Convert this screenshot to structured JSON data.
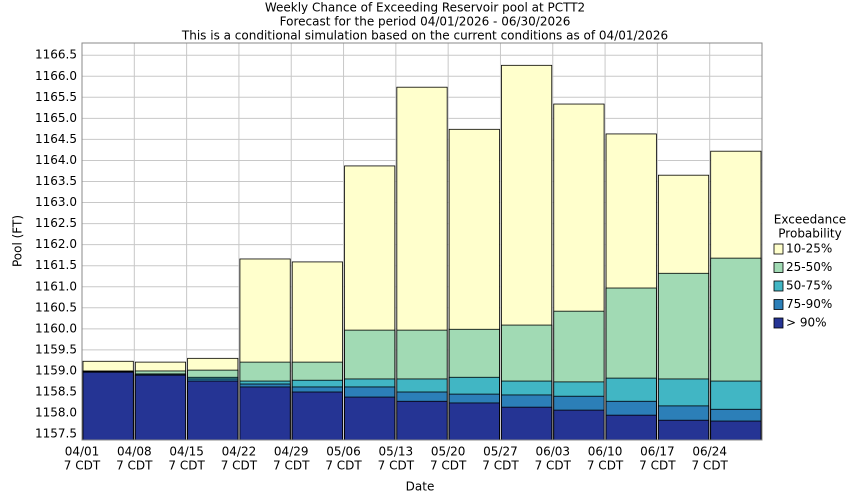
{
  "chart_data": {
    "type": "bar",
    "title": "Weekly Chance of Exceeding Reservoir pool at PCTT2",
    "subtitle": "Forecast for the period 04/01/2026 - 06/30/2026",
    "subtitle2": "This is a conditional simulation based on the current conditions as of 04/01/2026",
    "x_label": "Date",
    "y_label": "Pool (FT)",
    "categories": [
      "04/01",
      "04/08",
      "04/15",
      "04/22",
      "04/29",
      "05/06",
      "05/13",
      "05/20",
      "05/27",
      "06/03",
      "06/10",
      "06/17",
      "06/24"
    ],
    "category_sublabel": "7 CDT",
    "legend_title": [
      "Exceedance",
      "Probability"
    ],
    "series": [
      {
        "name": "10-25%",
        "color": "#ffffcc",
        "values": [
          1159.23,
          1159.21,
          1159.3,
          1161.66,
          1161.59,
          1163.87,
          1165.74,
          1164.74,
          1166.26,
          1165.34,
          1164.63,
          1163.65,
          1164.22
        ]
      },
      {
        "name": "25-50%",
        "color": "#a1dab4",
        "values": [
          1159.0,
          1159.0,
          1159.02,
          1159.21,
          1159.21,
          1159.97,
          1159.97,
          1159.99,
          1160.09,
          1160.42,
          1160.97,
          1161.32,
          1161.68
        ]
      },
      {
        "name": "50-75%",
        "color": "#41b6c4",
        "values": [
          1158.99,
          1158.93,
          1158.85,
          1158.76,
          1158.78,
          1158.81,
          1158.81,
          1158.85,
          1158.76,
          1158.74,
          1158.83,
          1158.81,
          1158.76
        ]
      },
      {
        "name": "75-90%",
        "color": "#2c7fb8",
        "values": [
          1158.98,
          1158.91,
          1158.81,
          1158.69,
          1158.62,
          1158.62,
          1158.5,
          1158.45,
          1158.43,
          1158.4,
          1158.28,
          1158.17,
          1158.09
        ]
      },
      {
        "name": "> 90%",
        "color": "#253494",
        "values": [
          1158.97,
          1158.9,
          1158.76,
          1158.62,
          1158.5,
          1158.38,
          1158.28,
          1158.24,
          1158.14,
          1158.07,
          1157.95,
          1157.83,
          1157.81
        ]
      }
    ],
    "ylim": [
      1157.36,
      1166.79
    ],
    "yticks": [
      1157.5,
      {
        "value": 1158,
        "label": "1158.0"
      },
      1158.5,
      {
        "value": 1159,
        "label": "1159.0"
      },
      1159.5,
      {
        "value": 1160,
        "label": "1160.0"
      },
      1160.5,
      {
        "value": 1161,
        "label": "1161.0"
      },
      1161.5,
      {
        "value": 1162,
        "label": "1162.0"
      },
      1162.5,
      {
        "value": 1163,
        "label": "1163.0"
      },
      1163.5,
      {
        "value": 1164,
        "label": "1164.0"
      },
      1164.5,
      {
        "value": 1165,
        "label": "1165.0"
      },
      1165.5,
      {
        "value": 1166,
        "label": "1166.0"
      },
      1166.5
    ],
    "grid": true
  }
}
